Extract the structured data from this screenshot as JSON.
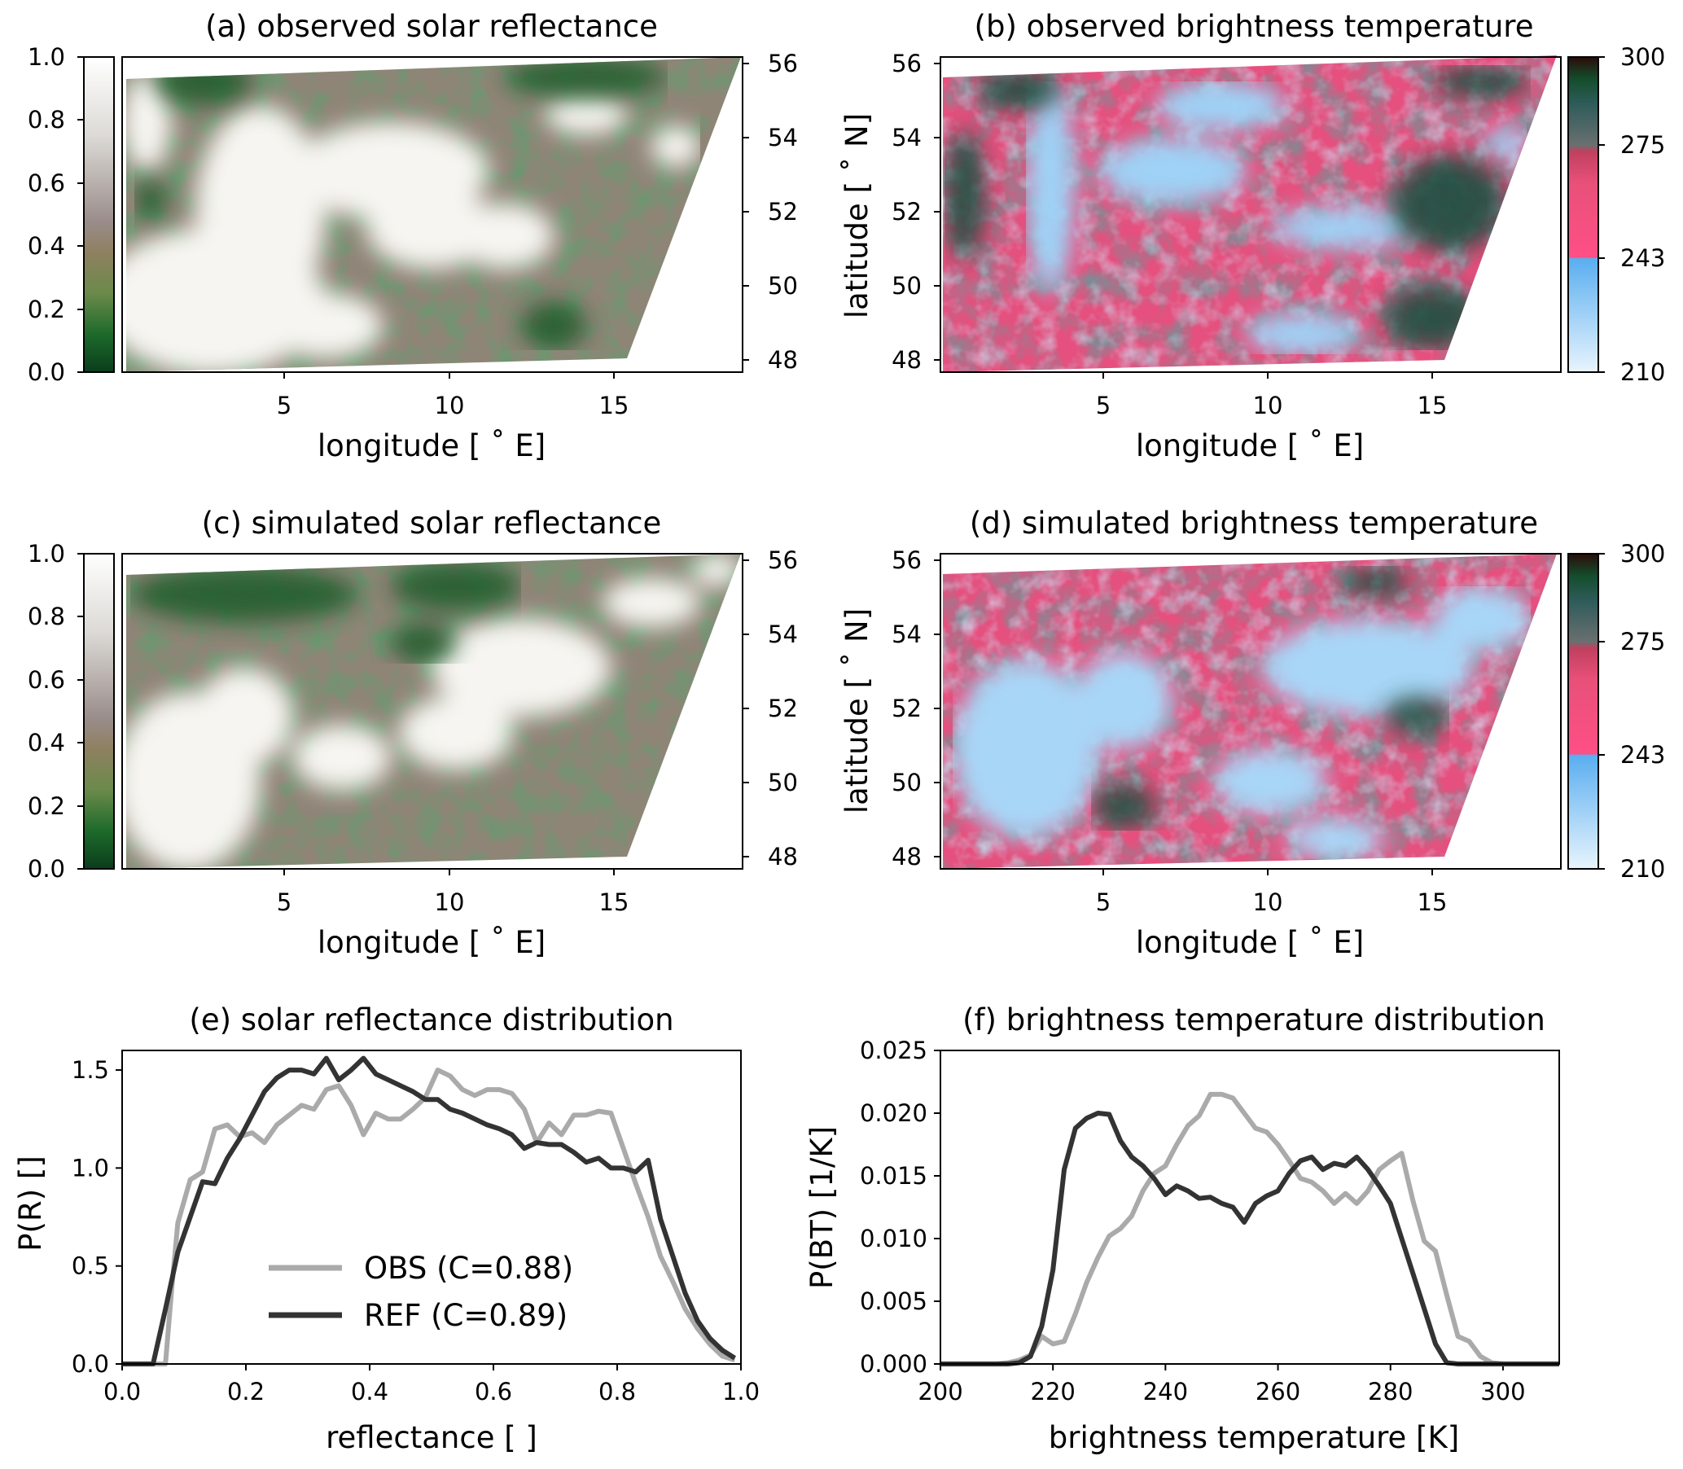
{
  "colors": {
    "refl_cmap": [
      "#0b3d1c",
      "#1d6a2b",
      "#4a8a3a",
      "#8e8060",
      "#9a8d8c",
      "#b8b0ad",
      "#dcdad6",
      "#f4f3f0",
      "#ffffff"
    ],
    "bt_cmap_low": [
      "#e8f4fd",
      "#92ccf5",
      "#5aaef0"
    ],
    "bt_cmap_mid": [
      "#ff4f86",
      "#e8507a",
      "#c0405e"
    ],
    "bt_cmap_high": [
      "#6b6f70",
      "#2e5c5a",
      "#144d2c",
      "#2a0c08"
    ],
    "obs_line": "#aaaaaa",
    "ref_line": "#333333"
  },
  "panels": [
    {
      "id": "a",
      "title": "(a) observed solar reflectance",
      "xlabel": "longitude [$^\\circ$E]",
      "xlabel_display": "longitude [ ˚ E]",
      "xticks": [
        "5",
        "10",
        "15"
      ],
      "yticks_right": [
        "56",
        "54",
        "52",
        "50",
        "48"
      ],
      "colorbar_ticks": [
        "1.0",
        "0.8",
        "0.6",
        "0.4",
        "0.2",
        "0.0"
      ],
      "colorbar_side": "left",
      "field": "reflectance",
      "variant": "observed"
    },
    {
      "id": "b",
      "title": "(b) observed brightness temperature",
      "xlabel_display": "longitude [ ˚ E]",
      "ylabel_display": "latitude [ ˚ N]",
      "xticks": [
        "5",
        "10",
        "15"
      ],
      "yticks_left": [
        "56",
        "54",
        "52",
        "50",
        "48"
      ],
      "colorbar_ticks": [
        "300",
        "275",
        "243",
        "210"
      ],
      "colorbar_side": "right",
      "field": "brightness_temperature",
      "variant": "observed"
    },
    {
      "id": "c",
      "title": "(c) simulated solar reflectance",
      "xlabel_display": "longitude [ ˚ E]",
      "xticks": [
        "5",
        "10",
        "15"
      ],
      "yticks_right": [
        "56",
        "54",
        "52",
        "50",
        "48"
      ],
      "colorbar_ticks": [
        "1.0",
        "0.8",
        "0.6",
        "0.4",
        "0.2",
        "0.0"
      ],
      "colorbar_side": "left",
      "field": "reflectance",
      "variant": "simulated"
    },
    {
      "id": "d",
      "title": "(d) simulated brightness temperature",
      "xlabel_display": "longitude [ ˚ E]",
      "ylabel_display": "latitude [ ˚ N]",
      "xticks": [
        "5",
        "10",
        "15"
      ],
      "yticks_left": [
        "56",
        "54",
        "52",
        "50",
        "48"
      ],
      "colorbar_ticks": [
        "300",
        "275",
        "243",
        "210"
      ],
      "colorbar_side": "right",
      "field": "brightness_temperature",
      "variant": "simulated"
    }
  ],
  "chart_data": [
    {
      "id": "e",
      "type": "line",
      "title": "(e) solar reflectance distribution",
      "xlabel": "reflectance [ ]",
      "ylabel": "P(R) []",
      "xlim": [
        0,
        1
      ],
      "ylim": [
        0,
        1.6
      ],
      "xticks": [
        0.0,
        0.2,
        0.4,
        0.6,
        0.8,
        1.0
      ],
      "xtick_labels": [
        "0.0",
        "0.2",
        "0.4",
        "0.6",
        "0.8",
        "1.0"
      ],
      "yticks": [
        0.0,
        0.5,
        1.0,
        1.5
      ],
      "ytick_labels": [
        "0.0",
        "0.5",
        "1.0",
        "1.5"
      ],
      "legend": "lower-left",
      "series": [
        {
          "name": "OBS (C=0.88)",
          "x": [
            0.0,
            0.05,
            0.07,
            0.08,
            0.09,
            0.11,
            0.13,
            0.15,
            0.17,
            0.19,
            0.21,
            0.23,
            0.25,
            0.27,
            0.29,
            0.31,
            0.33,
            0.35,
            0.37,
            0.39,
            0.41,
            0.43,
            0.45,
            0.47,
            0.49,
            0.51,
            0.53,
            0.55,
            0.57,
            0.59,
            0.61,
            0.63,
            0.65,
            0.67,
            0.69,
            0.71,
            0.73,
            0.75,
            0.77,
            0.79,
            0.81,
            0.83,
            0.85,
            0.87,
            0.89,
            0.91,
            0.93,
            0.95,
            0.97,
            0.99
          ],
          "y": [
            0.0,
            0.0,
            0.0,
            0.38,
            0.72,
            0.94,
            0.98,
            1.2,
            1.22,
            1.16,
            1.18,
            1.13,
            1.22,
            1.27,
            1.32,
            1.3,
            1.4,
            1.42,
            1.32,
            1.17,
            1.28,
            1.25,
            1.25,
            1.3,
            1.36,
            1.5,
            1.47,
            1.4,
            1.37,
            1.4,
            1.4,
            1.38,
            1.3,
            1.13,
            1.23,
            1.17,
            1.27,
            1.27,
            1.29,
            1.28,
            1.1,
            0.92,
            0.75,
            0.55,
            0.42,
            0.28,
            0.18,
            0.1,
            0.04,
            0.02
          ]
        },
        {
          "name": "REF (C=0.89)",
          "x": [
            0.0,
            0.05,
            0.06,
            0.07,
            0.09,
            0.11,
            0.13,
            0.15,
            0.17,
            0.19,
            0.21,
            0.23,
            0.25,
            0.27,
            0.29,
            0.31,
            0.33,
            0.35,
            0.37,
            0.39,
            0.41,
            0.43,
            0.45,
            0.47,
            0.49,
            0.51,
            0.53,
            0.55,
            0.57,
            0.59,
            0.61,
            0.63,
            0.65,
            0.67,
            0.69,
            0.71,
            0.73,
            0.75,
            0.77,
            0.79,
            0.81,
            0.83,
            0.85,
            0.87,
            0.89,
            0.91,
            0.93,
            0.95,
            0.97,
            0.99
          ],
          "y": [
            0.0,
            0.0,
            0.14,
            0.28,
            0.57,
            0.75,
            0.93,
            0.92,
            1.05,
            1.15,
            1.27,
            1.39,
            1.46,
            1.5,
            1.5,
            1.48,
            1.56,
            1.45,
            1.5,
            1.56,
            1.48,
            1.45,
            1.42,
            1.39,
            1.35,
            1.35,
            1.3,
            1.28,
            1.25,
            1.22,
            1.2,
            1.17,
            1.1,
            1.13,
            1.12,
            1.12,
            1.08,
            1.03,
            1.05,
            1.0,
            1.0,
            0.98,
            1.04,
            0.74,
            0.55,
            0.36,
            0.22,
            0.13,
            0.07,
            0.03
          ]
        }
      ]
    },
    {
      "id": "f",
      "type": "line",
      "title": "(f) brightness temperature distribution",
      "xlabel": "brightness temperature [K]",
      "ylabel": "P(BT) [1/K]",
      "xlim": [
        200,
        310
      ],
      "ylim": [
        0,
        0.025
      ],
      "xticks": [
        200,
        220,
        240,
        260,
        280,
        300
      ],
      "xtick_labels": [
        "200",
        "220",
        "240",
        "260",
        "280",
        "300"
      ],
      "yticks": [
        0.0,
        0.005,
        0.01,
        0.015,
        0.02,
        0.025
      ],
      "ytick_labels": [
        "0.000",
        "0.005",
        "0.010",
        "0.015",
        "0.020",
        "0.025"
      ],
      "series": [
        {
          "name": "OBS",
          "x": [
            200,
            210,
            212,
            214,
            216,
            218,
            220,
            222,
            224,
            226,
            228,
            230,
            232,
            234,
            236,
            238,
            240,
            242,
            244,
            246,
            248,
            250,
            252,
            254,
            256,
            258,
            260,
            262,
            264,
            266,
            268,
            270,
            272,
            274,
            276,
            278,
            280,
            282,
            284,
            286,
            288,
            290,
            292,
            294,
            296,
            298,
            300,
            310
          ],
          "y": [
            0.0,
            0.0,
            0.0001,
            0.0003,
            0.0007,
            0.0022,
            0.0016,
            0.0018,
            0.004,
            0.0065,
            0.0085,
            0.0102,
            0.0108,
            0.0118,
            0.0138,
            0.0152,
            0.0158,
            0.0175,
            0.019,
            0.0198,
            0.0215,
            0.0215,
            0.0212,
            0.02,
            0.0188,
            0.0185,
            0.0175,
            0.0162,
            0.0148,
            0.0145,
            0.0138,
            0.0128,
            0.0136,
            0.0128,
            0.0138,
            0.0155,
            0.0162,
            0.0168,
            0.013,
            0.0098,
            0.009,
            0.0055,
            0.0022,
            0.0018,
            0.0006,
            0.0001,
            0.0,
            0.0
          ]
        },
        {
          "name": "REF",
          "x": [
            200,
            210,
            212,
            214,
            216,
            218,
            220,
            222,
            224,
            226,
            228,
            230,
            232,
            234,
            236,
            238,
            240,
            242,
            244,
            246,
            248,
            250,
            252,
            254,
            256,
            258,
            260,
            262,
            264,
            266,
            268,
            270,
            272,
            274,
            276,
            278,
            280,
            282,
            284,
            286,
            288,
            290,
            292,
            310
          ],
          "y": [
            0.0,
            0.0,
            0.0,
            0.0001,
            0.0006,
            0.003,
            0.0075,
            0.0155,
            0.0188,
            0.0196,
            0.02,
            0.0199,
            0.0178,
            0.0165,
            0.0158,
            0.0148,
            0.0135,
            0.0142,
            0.0138,
            0.0132,
            0.0133,
            0.0128,
            0.0125,
            0.0113,
            0.0128,
            0.0134,
            0.0138,
            0.0152,
            0.0162,
            0.0165,
            0.0155,
            0.016,
            0.0158,
            0.0165,
            0.0155,
            0.0142,
            0.0128,
            0.01,
            0.0072,
            0.0044,
            0.0016,
            0.0001,
            0.0,
            0.0
          ]
        }
      ]
    }
  ]
}
